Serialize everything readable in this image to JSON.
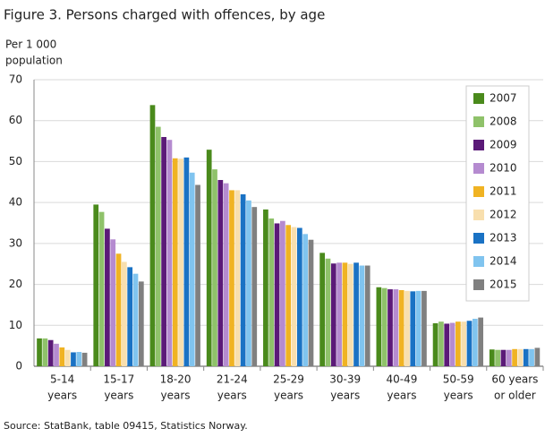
{
  "chart_data": {
    "type": "bar",
    "title": "Figure 3. Persons charged with offences, by age",
    "y_label": [
      "Per 1 000",
      "population"
    ],
    "source": "Source: StatBank, table 09415, Statistics Norway.",
    "categories": [
      [
        "5-14",
        "years"
      ],
      [
        "15-17",
        "years"
      ],
      [
        "18-20",
        "years"
      ],
      [
        "21-24",
        "years"
      ],
      [
        "25-29",
        "years"
      ],
      [
        "30-39",
        "years"
      ],
      [
        "40-49",
        "years"
      ],
      [
        "50-59",
        "years"
      ],
      [
        "60 years",
        "or older"
      ]
    ],
    "series": [
      {
        "name": "2007",
        "color": "#4a8a1c",
        "values": [
          6.8,
          39.5,
          63.8,
          52.9,
          38.3,
          27.7,
          19.3,
          10.5,
          4.1
        ]
      },
      {
        "name": "2008",
        "color": "#8fc26a",
        "values": [
          6.8,
          37.7,
          58.5,
          48.1,
          36.1,
          26.3,
          19.1,
          10.9,
          4.0
        ]
      },
      {
        "name": "2009",
        "color": "#5b1a78",
        "values": [
          6.4,
          33.6,
          56.0,
          45.5,
          34.9,
          25.1,
          18.8,
          10.4,
          4.0
        ]
      },
      {
        "name": "2010",
        "color": "#b58bd0",
        "values": [
          5.5,
          31.0,
          55.3,
          44.7,
          35.5,
          25.3,
          18.8,
          10.6,
          4.0
        ]
      },
      {
        "name": "2011",
        "color": "#f0b323",
        "values": [
          4.6,
          27.5,
          50.8,
          43.0,
          34.5,
          25.3,
          18.6,
          10.9,
          4.2
        ]
      },
      {
        "name": "2012",
        "color": "#f8dfae",
        "values": [
          4.0,
          25.5,
          50.7,
          43.0,
          34.0,
          25.0,
          18.4,
          10.9,
          4.2
        ]
      },
      {
        "name": "2013",
        "color": "#1a72c4",
        "values": [
          3.4,
          24.2,
          51.0,
          42.0,
          33.8,
          25.3,
          18.3,
          11.1,
          4.2
        ]
      },
      {
        "name": "2014",
        "color": "#80c4ef",
        "values": [
          3.5,
          22.6,
          47.3,
          40.5,
          32.3,
          24.6,
          18.4,
          11.6,
          4.2
        ]
      },
      {
        "name": "2015",
        "color": "#808080",
        "values": [
          3.3,
          20.7,
          44.3,
          38.9,
          30.9,
          24.6,
          18.4,
          11.9,
          4.5
        ]
      }
    ],
    "ylim": [
      0,
      70
    ],
    "yticks": [
      0,
      10,
      20,
      30,
      40,
      50,
      60,
      70
    ],
    "grid": true,
    "legend": "top-right"
  }
}
